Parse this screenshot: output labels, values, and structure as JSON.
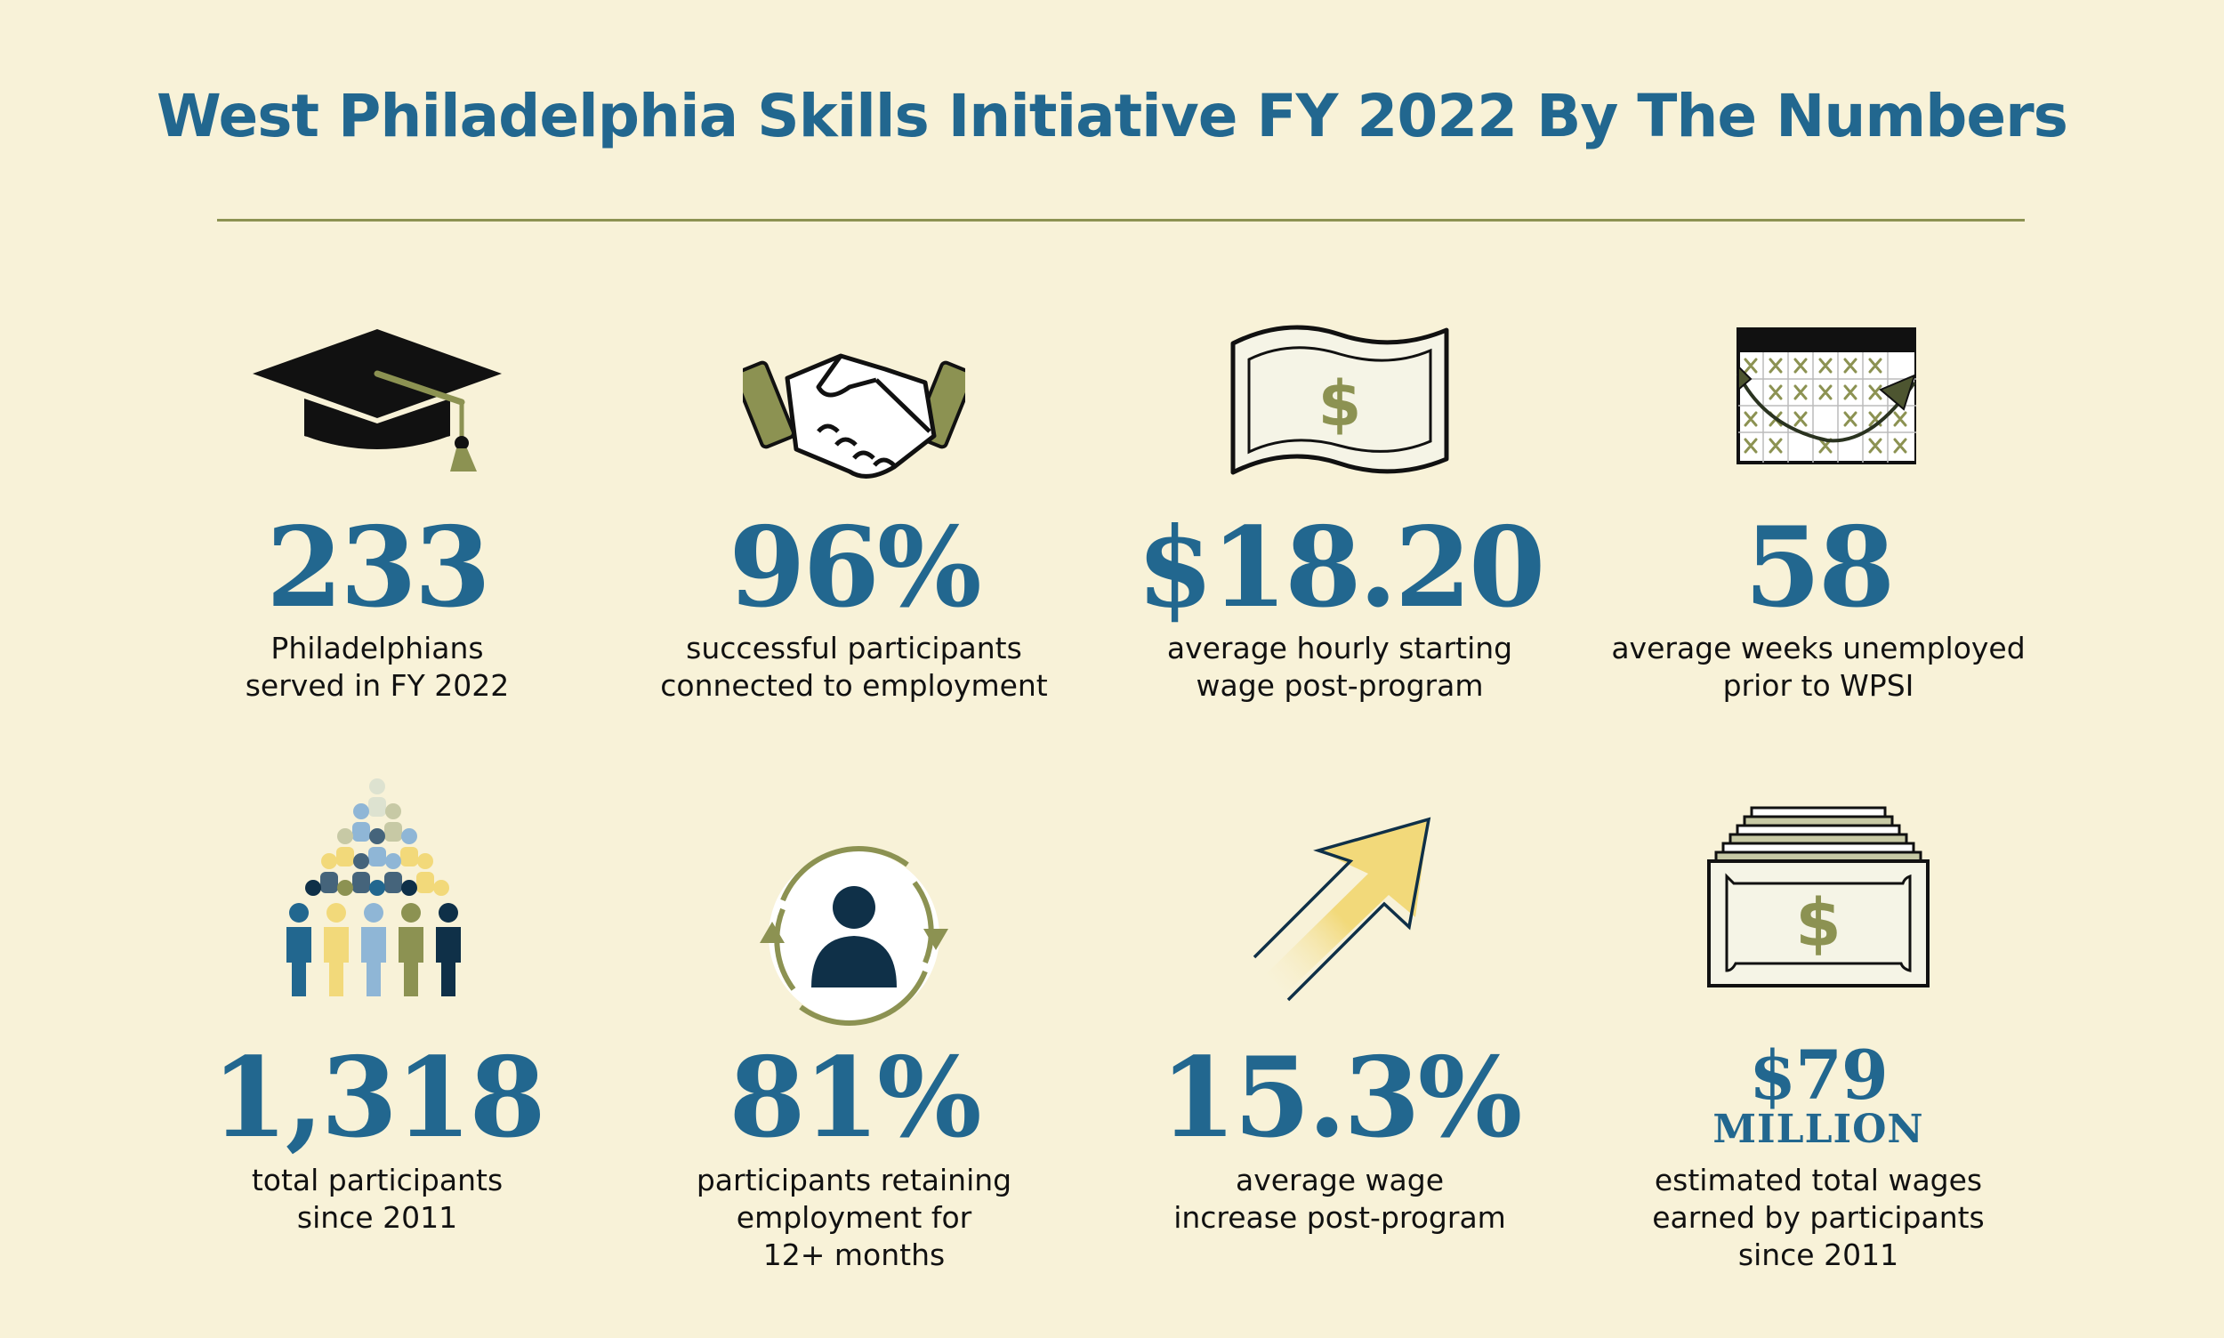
{
  "title": "West Philadelphia Skills Initiative FY 2022 By The Numbers",
  "colors": {
    "background": "#f8f2d8",
    "accent_blue": "#22678f",
    "olive": "#8c9252",
    "navy": "#0f3048",
    "yellow": "#f2d97a"
  },
  "stats": [
    {
      "icon": "graduation-cap-icon",
      "value": "233",
      "lines": [
        "Philadelphians",
        "served in FY 2022"
      ]
    },
    {
      "icon": "handshake-icon",
      "value": "96%",
      "lines": [
        "successful participants",
        "connected to employment"
      ]
    },
    {
      "icon": "dollar-bill-icon",
      "value": "$18.20",
      "lines": [
        "average hourly starting",
        "wage post-program"
      ]
    },
    {
      "icon": "calendar-icon",
      "value": "58",
      "lines": [
        "average weeks unemployed",
        "prior to WPSI"
      ]
    },
    {
      "icon": "crowd-icon",
      "value": "1,318",
      "lines": [
        "total participants",
        "since 2011"
      ]
    },
    {
      "icon": "person-cycle-icon",
      "value": "81%",
      "lines": [
        "participants retaining",
        "employment for",
        "12+ months"
      ]
    },
    {
      "icon": "up-arrow-icon",
      "value": "15.3%",
      "lines": [
        "average wage",
        "increase post-program"
      ]
    },
    {
      "icon": "money-stack-icon",
      "value": "$79",
      "value_sub": "MILLION",
      "lines": [
        "estimated total wages",
        "earned by participants",
        "since 2011"
      ]
    }
  ],
  "dollar_symbol": "$"
}
